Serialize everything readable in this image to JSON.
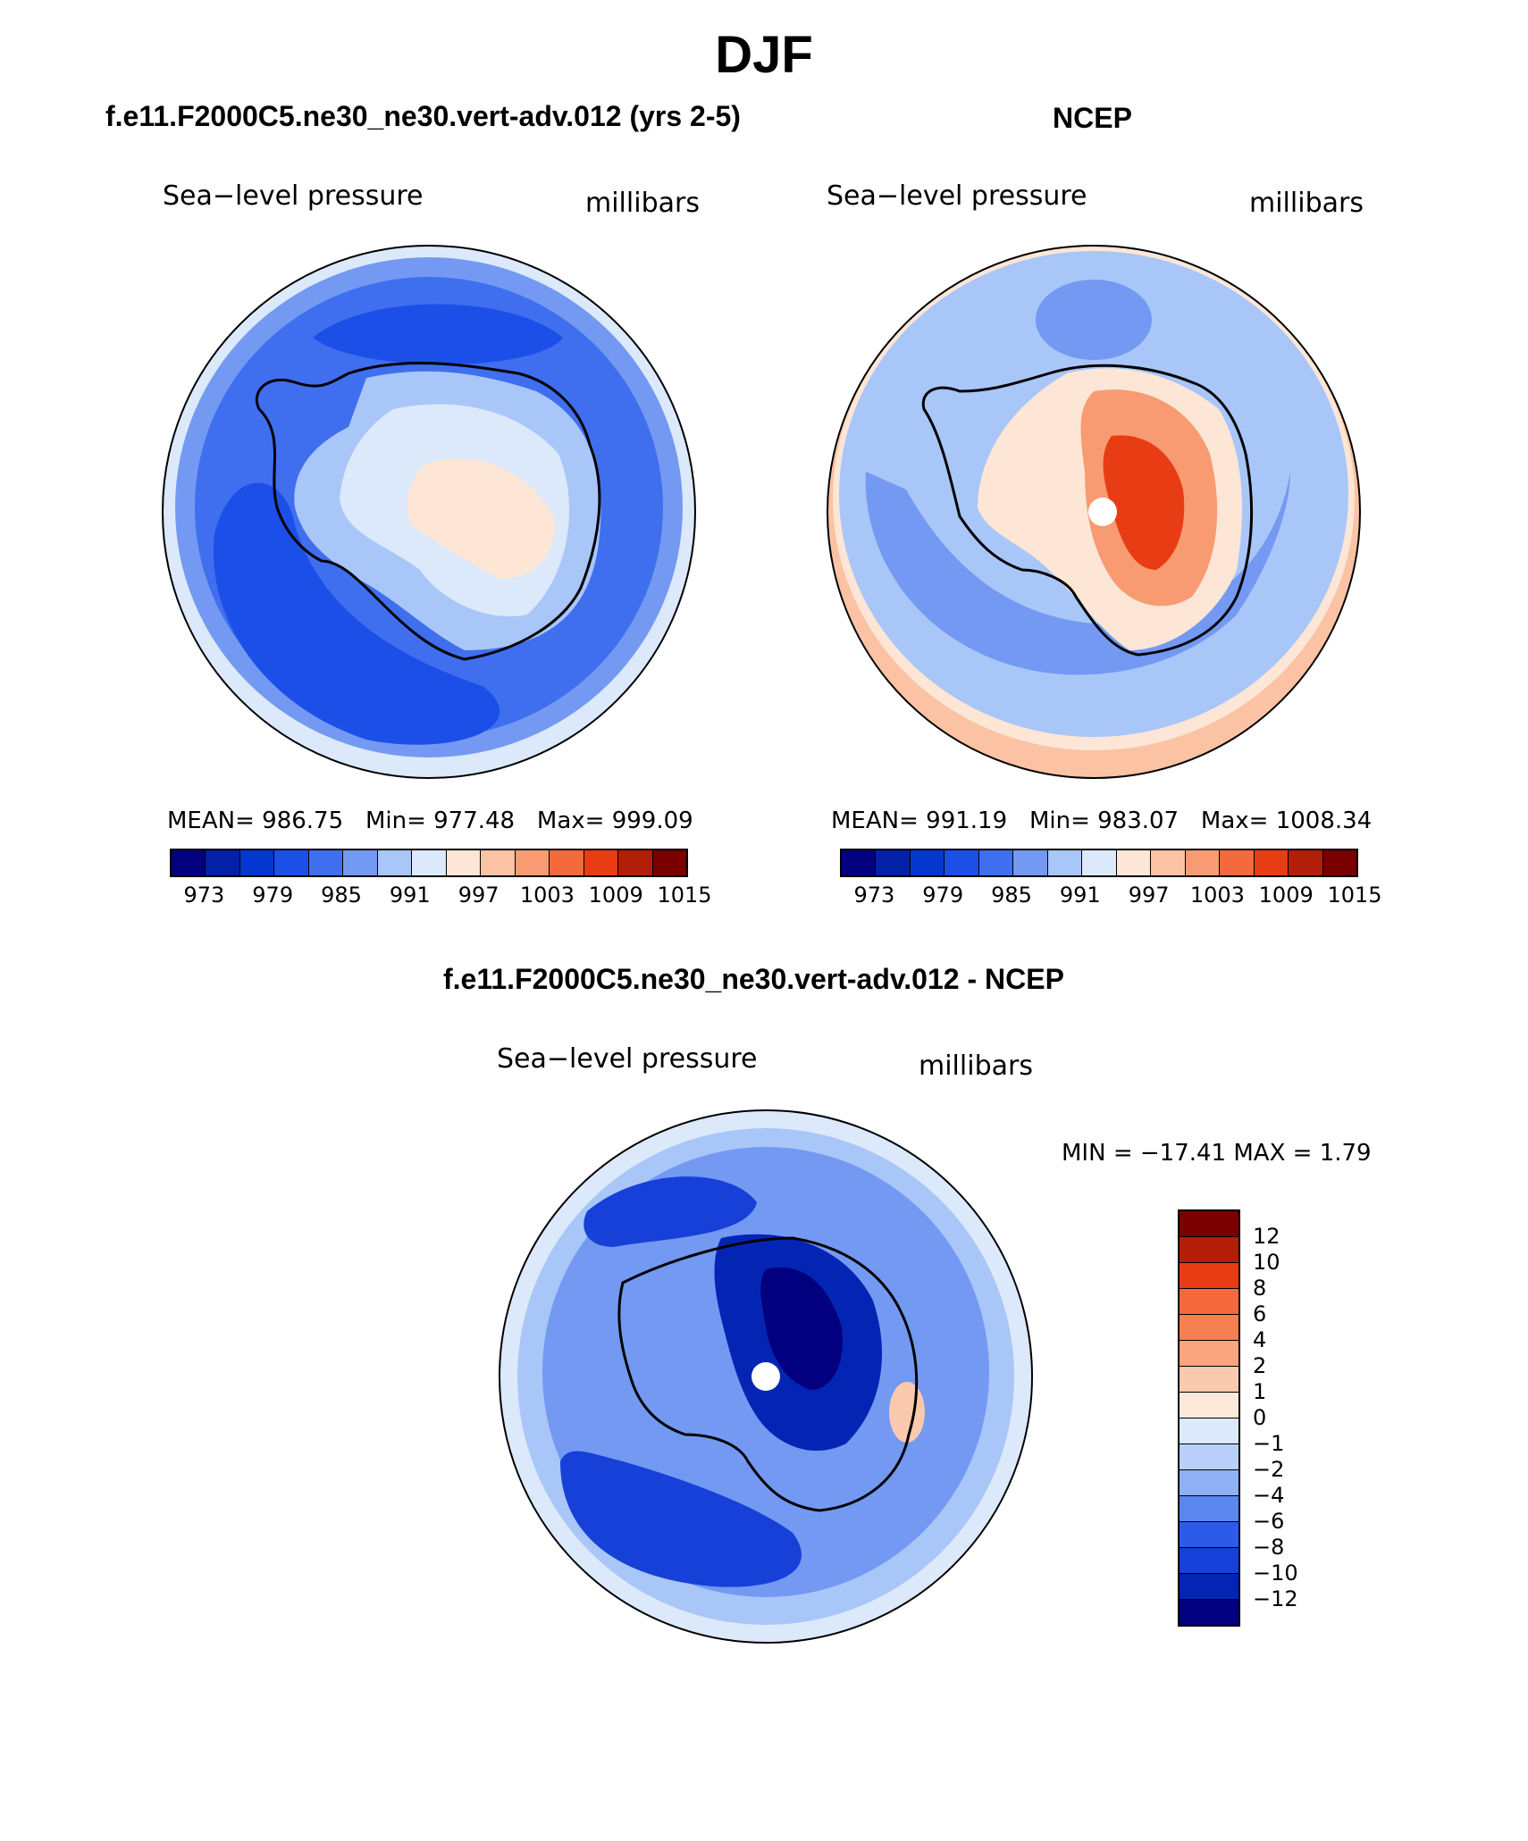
{
  "title": "DJF",
  "panels": {
    "model": {
      "title": "f.e11.F2000C5.ne30_ne30.vert-adv.012 (yrs 2-5)",
      "variable": "Sea−level pressure",
      "units": "millibars",
      "stats": {
        "mean_label": "MEAN=",
        "mean": "986.75",
        "min_label": "Min=",
        "min": "977.48",
        "max_label": "Max=",
        "max": "999.09"
      }
    },
    "obs": {
      "title": "NCEP",
      "variable": "Sea−level pressure",
      "units": "millibars",
      "stats": {
        "mean_label": "MEAN=",
        "mean": "991.19",
        "min_label": "Min=",
        "min": "983.07",
        "max_label": "Max=",
        "max": "1008.34"
      }
    },
    "diff": {
      "title": "f.e11.F2000C5.ne30_ne30.vert-adv.012 - NCEP",
      "variable": "Sea−level pressure",
      "units": "millibars",
      "minmax": "MIN = −17.41  MAX =    1.79"
    }
  },
  "abs_colorbar": {
    "colors": [
      "#02007f",
      "#0221a6",
      "#0437d0",
      "#1c4fe8",
      "#3f6fee",
      "#7399f2",
      "#a9c6f8",
      "#dbe9fb",
      "#fde6d6",
      "#fbc2a4",
      "#f89b72",
      "#f5693f",
      "#e83d14",
      "#b31e08",
      "#7a0000"
    ],
    "ticks": [
      "973",
      "979",
      "985",
      "991",
      "997",
      "1003",
      "1009",
      "1015"
    ]
  },
  "diff_colorbar": {
    "colors": [
      "#7a0000",
      "#b31e08",
      "#e83d14",
      "#f5693f",
      "#f78050",
      "#f9a57f",
      "#fbc9ad",
      "#fde9da",
      "#dbe9fb",
      "#b8d0f9",
      "#8fb0f4",
      "#5a86ee",
      "#2c5be8",
      "#1640d8",
      "#0425b4",
      "#02007f"
    ],
    "ticks": [
      "12",
      "10",
      "8",
      "6",
      "4",
      "2",
      "1",
      "0",
      "−1",
      "−2",
      "−4",
      "−6",
      "−8",
      "−10",
      "−12"
    ]
  },
  "fields": {
    "model": {
      "outer": "#dbe9fb",
      "mid": "#3f6fee",
      "low": "#1c4fe8",
      "continent": "#a9c6f8",
      "interior": "#dbe9fb",
      "center": "#fde6d6"
    },
    "obs": {
      "outer": "#fbc2a4",
      "mid": "#a9c6f8",
      "low": "#7399f2",
      "continent": "#fde6d6",
      "interior": "#f89b72",
      "center": "#e83d14"
    },
    "diff": {
      "outer": "#a9c6f8",
      "mid": "#3f6fee",
      "low": "#1640d8",
      "continent": "#7399f2",
      "interior": "#0425b4",
      "center": "#02007f"
    }
  }
}
